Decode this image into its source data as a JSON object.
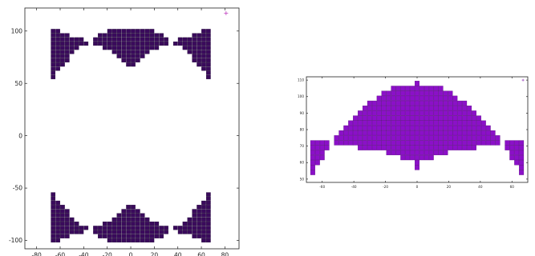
{
  "chart_data": [
    {
      "type": "scatter",
      "title": "",
      "xlabel": "",
      "ylabel": "",
      "xlim": [
        -90,
        92
      ],
      "ylim": [
        -108,
        122
      ],
      "x_ticks": [
        -80,
        -60,
        -40,
        -20,
        0,
        20,
        40,
        60,
        80
      ],
      "y_ticks": [
        -100,
        -50,
        0,
        50,
        100
      ],
      "x_tick_labels": [
        "-80",
        "-60",
        "-40",
        "-20",
        "0",
        "20",
        "40",
        "60",
        "80"
      ],
      "y_tick_labels": [
        "-100",
        "-50",
        "0",
        "50",
        "100"
      ],
      "grid": false,
      "legend": "none",
      "marker": "filled square",
      "marker_color": "#3a0a5c",
      "marker_edge": "#1a0030",
      "point_spacing": 4,
      "regions": [
        {
          "x_range": [
            -66,
            66
          ],
          "top_curve": "y = 104 - x^2/90",
          "bottom_curve": "y = 57 + 5.5*sqrt(|x|)",
          "min_y": 52
        },
        {
          "x_range": [
            -66,
            66
          ],
          "top_curve": "y = -(57 + 5.5*sqrt(|x|))",
          "bottom_curve": "y = -(104 - x^2/90)",
          "max_y": -52
        }
      ],
      "outlier": {
        "x": 81,
        "y": 117,
        "marker": "plus",
        "color": "#c040c0"
      }
    },
    {
      "type": "scatter",
      "title": "",
      "xlabel": "",
      "ylabel": "",
      "xlim": [
        -70,
        70
      ],
      "ylim": [
        48,
        112
      ],
      "x_ticks": [
        -60,
        -40,
        -20,
        0,
        20,
        40,
        60
      ],
      "y_ticks": [
        50,
        60,
        70,
        80,
        90,
        100,
        110
      ],
      "x_tick_labels": [
        "-60",
        "-40",
        "-20",
        "0",
        "20",
        "40",
        "60"
      ],
      "y_tick_labels": [
        "50",
        "60",
        "70",
        "80",
        "90",
        "100",
        "110"
      ],
      "grid": false,
      "legend": "none",
      "marker": "filled square",
      "marker_color": "#8b10c8",
      "marker_edge": "#5a0a80",
      "point_spacing": 3,
      "regions": [
        {
          "x_range": [
            -66,
            66
          ],
          "top_curve": "y = 108 - x^2/80",
          "bottom_curve": "y = 57 + 2*sqrt(|x|)",
          "min_y": 52
        }
      ],
      "outlier": {
        "x": 67,
        "y": 110,
        "marker": "plus",
        "color": "#a050c0"
      }
    }
  ]
}
